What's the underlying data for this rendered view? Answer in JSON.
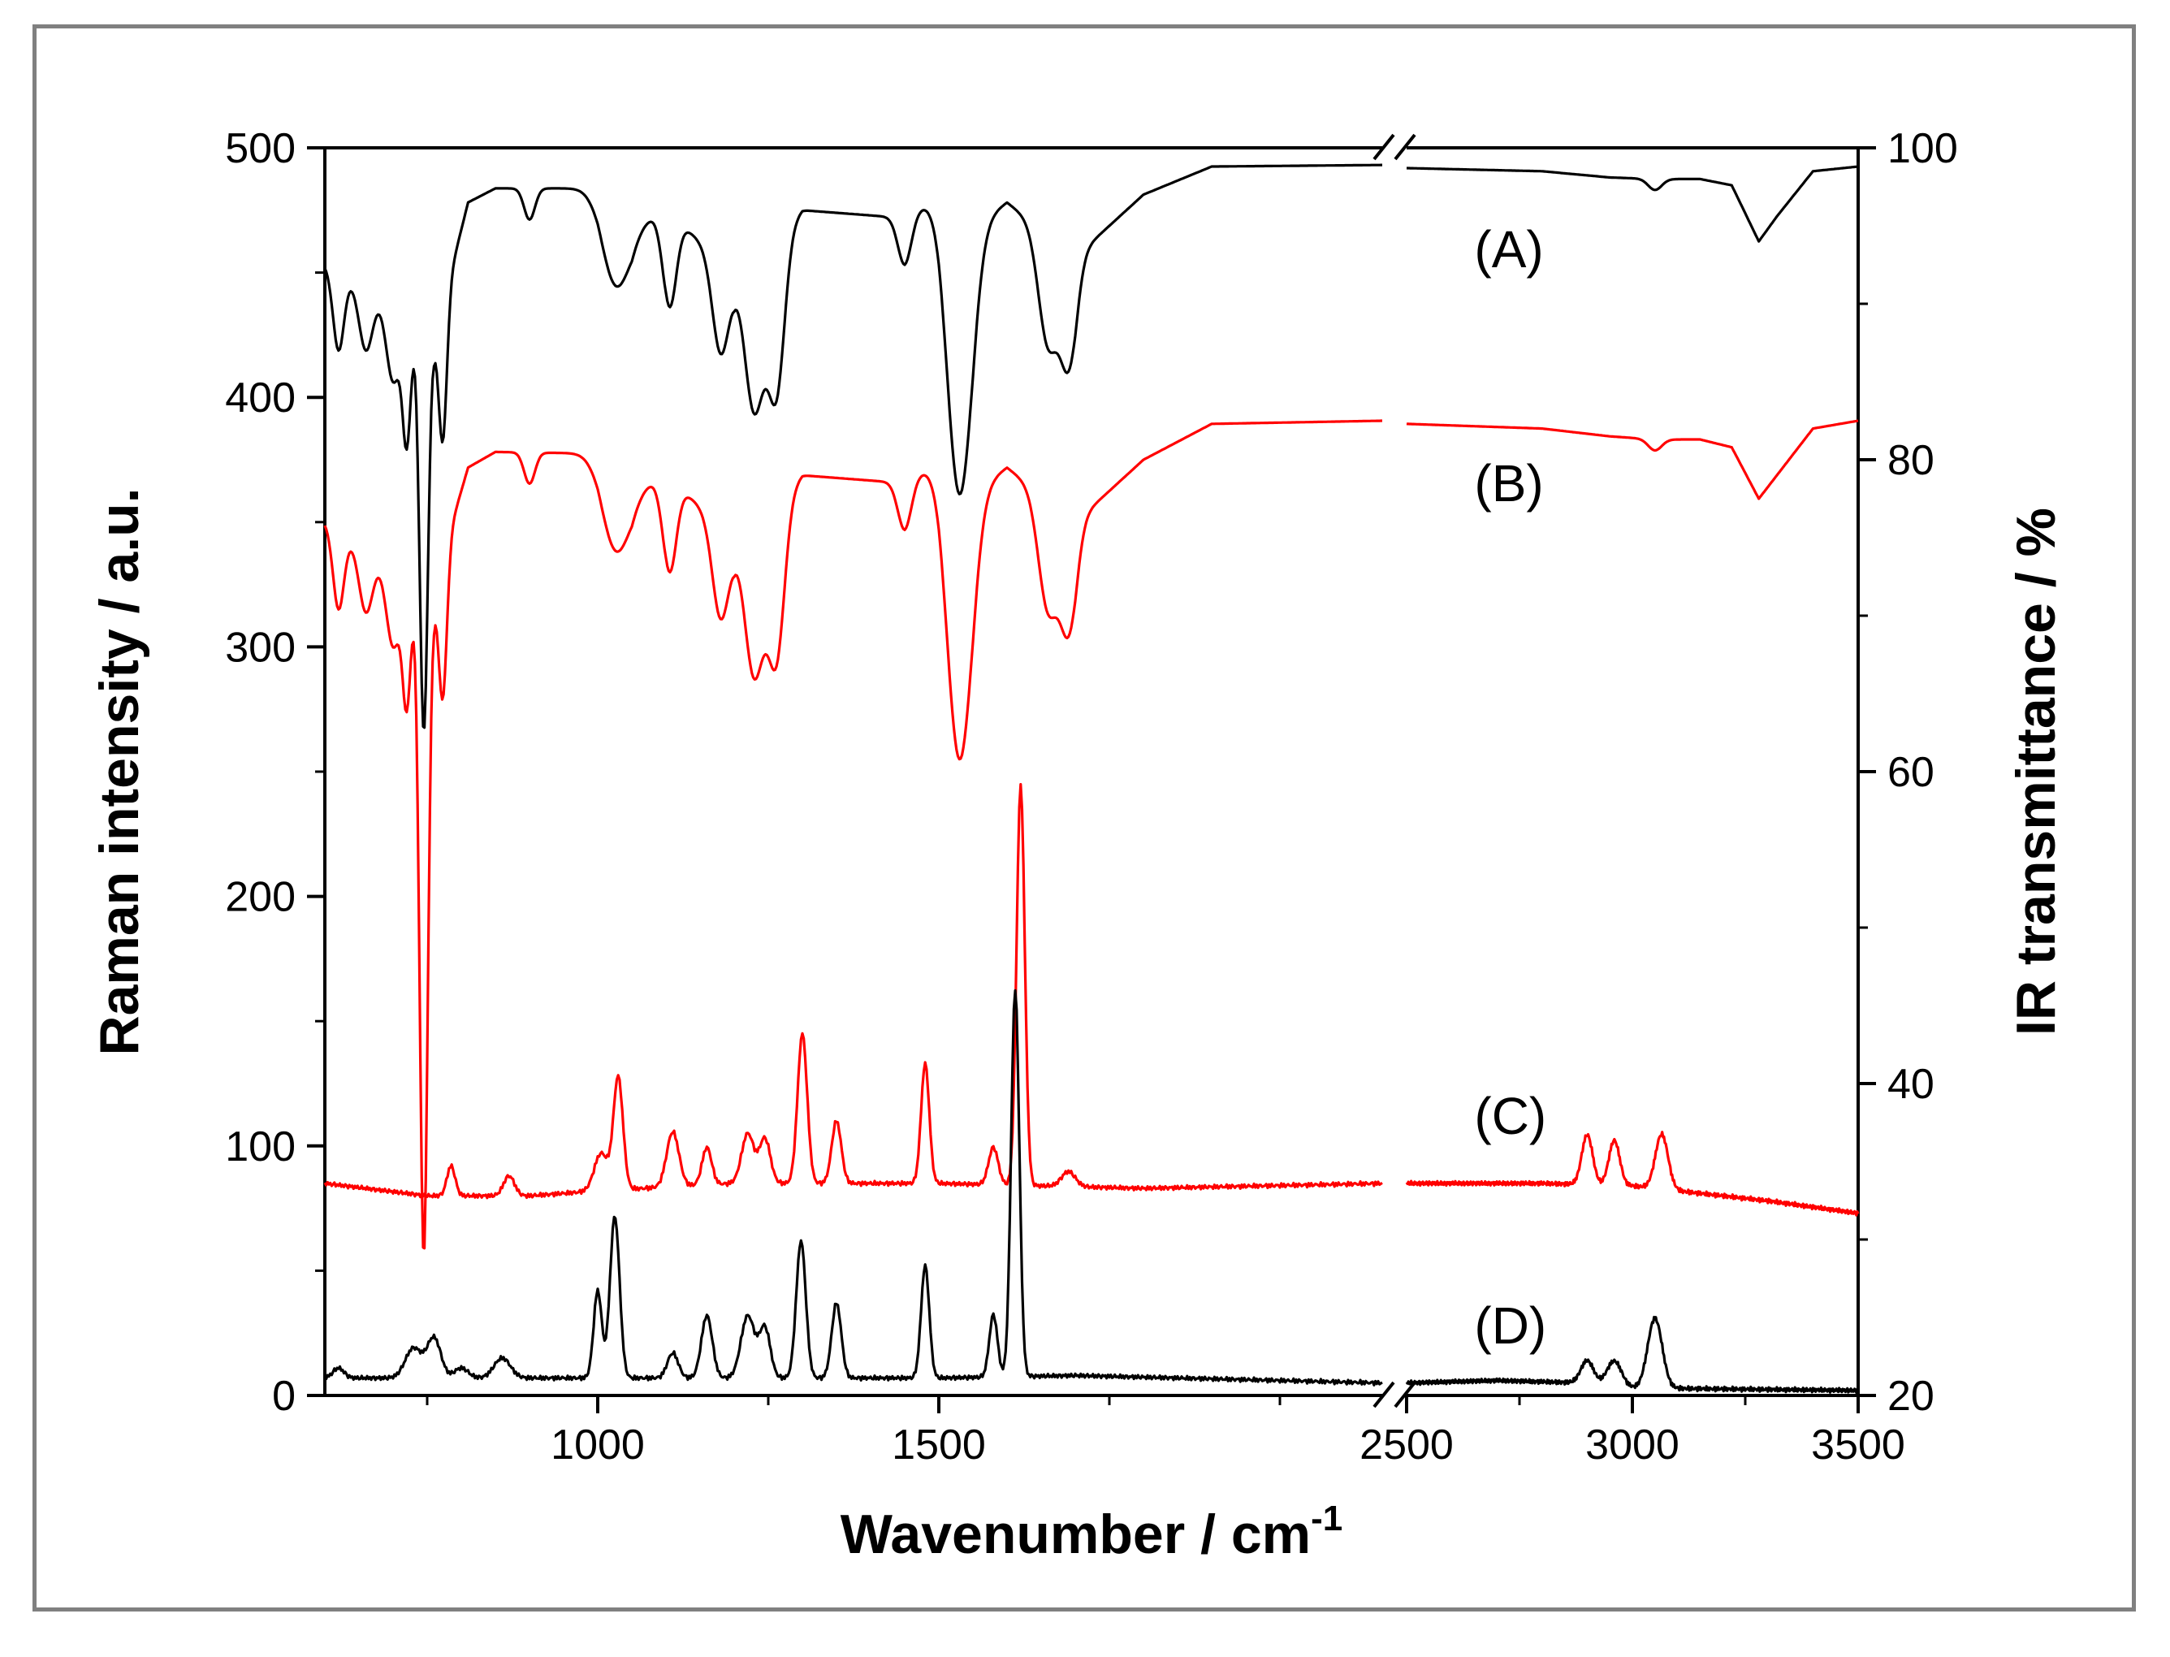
{
  "chart_data": {
    "type": "line",
    "title": "",
    "xlabel": "Wavenumber / cm",
    "xlabel_sup": "-1",
    "ylabel_left": "Raman intensity / a.u.",
    "ylabel_right": "IR transmittance / %",
    "x_break": true,
    "x_segments": [
      {
        "xlim": [
          600,
          2150
        ],
        "ticks": [
          1000,
          1500
        ],
        "tick_labels": [
          "1000",
          "1500"
        ]
      },
      {
        "xlim": [
          2500,
          3500
        ],
        "ticks": [
          2500,
          3000,
          3500
        ],
        "tick_labels": [
          "2500",
          "3000",
          "3500"
        ]
      }
    ],
    "ylim_left": [
      0,
      500
    ],
    "yticks_left": [
      0,
      100,
      200,
      300,
      400,
      500
    ],
    "ytick_labels_left": [
      "0",
      "100",
      "200",
      "300",
      "400",
      "500"
    ],
    "ylim_right": [
      20,
      100
    ],
    "yticks_right": [
      20,
      40,
      60,
      80,
      100
    ],
    "ytick_labels_right": [
      "20",
      "40",
      "60",
      "80",
      "100"
    ],
    "grid": false,
    "series": [
      {
        "name": "(A)",
        "axis": "right",
        "color": "#000000",
        "low": [
          [
            600,
            92.5
          ],
          [
            700,
            90
          ],
          [
            760,
            88
          ],
          [
            790,
            93
          ],
          [
            810,
            96.5
          ],
          [
            850,
            97.4
          ],
          [
            1000,
            97.4
          ],
          [
            1050,
            95
          ],
          [
            1100,
            96
          ],
          [
            1200,
            92
          ],
          [
            1300,
            96
          ],
          [
            1450,
            95.5
          ],
          [
            1500,
            97
          ],
          [
            1550,
            95
          ],
          [
            1600,
            96.5
          ],
          [
            1700,
            93
          ],
          [
            1800,
            97
          ],
          [
            1900,
            98.8
          ],
          [
            2150,
            98.9
          ]
        ],
        "high": [
          [
            2500,
            98.7
          ],
          [
            2800,
            98.5
          ],
          [
            2950,
            98.1
          ],
          [
            3050,
            98
          ],
          [
            3150,
            98
          ],
          [
            3220,
            97.6
          ],
          [
            3280,
            94
          ],
          [
            3320,
            95.6
          ],
          [
            3400,
            98.5
          ],
          [
            3500,
            98.8
          ]
        ],
        "dips": [
          [
            620,
            5,
            8
          ],
          [
            660,
            4,
            10
          ],
          [
            700,
            5,
            10
          ],
          [
            720,
            8,
            6
          ],
          [
            745,
            26,
            6
          ],
          [
            773,
            9,
            6
          ],
          [
            900,
            2,
            8
          ],
          [
            1025,
            5,
            20
          ],
          [
            1105,
            6,
            10
          ],
          [
            1180,
            6,
            12
          ],
          [
            1230,
            10,
            14
          ],
          [
            1262,
            10,
            12
          ],
          [
            1450,
            3,
            10
          ],
          [
            1530,
            18,
            18
          ],
          [
            1660,
            7,
            14
          ],
          [
            1690,
            7,
            12
          ],
          [
            3050,
            0.7,
            15
          ]
        ],
        "label": "(A)",
        "label_at": [
          2650,
          93.5
        ]
      },
      {
        "name": "(B)",
        "axis": "right",
        "color": "#ff0000",
        "low": [
          [
            600,
            76
          ],
          [
            700,
            73
          ],
          [
            760,
            71.5
          ],
          [
            790,
            76.5
          ],
          [
            810,
            79.5
          ],
          [
            850,
            80.5
          ],
          [
            1000,
            80.4
          ],
          [
            1050,
            78
          ],
          [
            1100,
            79
          ],
          [
            1200,
            75
          ],
          [
            1300,
            79
          ],
          [
            1450,
            78.5
          ],
          [
            1500,
            80
          ],
          [
            1550,
            78
          ],
          [
            1600,
            79.5
          ],
          [
            1700,
            76
          ],
          [
            1800,
            80
          ],
          [
            1900,
            82.3
          ],
          [
            2150,
            82.5
          ]
        ],
        "high": [
          [
            2500,
            82.3
          ],
          [
            2800,
            82
          ],
          [
            2950,
            81.5
          ],
          [
            3050,
            81.3
          ],
          [
            3150,
            81.3
          ],
          [
            3220,
            80.8
          ],
          [
            3280,
            77.5
          ],
          [
            3320,
            79
          ],
          [
            3400,
            82
          ],
          [
            3500,
            82.5
          ]
        ],
        "dips": [
          [
            620,
            5,
            8
          ],
          [
            660,
            4,
            10
          ],
          [
            700,
            5,
            10
          ],
          [
            720,
            8,
            6
          ],
          [
            745,
            43,
            6
          ],
          [
            773,
            9,
            6
          ],
          [
            900,
            2,
            8
          ],
          [
            1025,
            5,
            20
          ],
          [
            1105,
            6,
            10
          ],
          [
            1180,
            6,
            12
          ],
          [
            1230,
            10,
            14
          ],
          [
            1262,
            10,
            12
          ],
          [
            1450,
            3,
            10
          ],
          [
            1530,
            18,
            18
          ],
          [
            1660,
            7,
            14
          ],
          [
            1690,
            7,
            12
          ],
          [
            3050,
            0.7,
            15
          ]
        ],
        "label": "(B)",
        "label_at": [
          2650,
          78.5
        ]
      },
      {
        "name": "(C)",
        "axis": "left",
        "color": "#ff0000",
        "low": [
          [
            600,
            85
          ],
          [
            750,
            80
          ],
          [
            900,
            80
          ],
          [
            1000,
            82
          ],
          [
            1200,
            85
          ],
          [
            1500,
            85
          ],
          [
            1800,
            83
          ],
          [
            2150,
            85
          ]
        ],
        "high": [
          [
            2500,
            85
          ],
          [
            2800,
            85
          ],
          [
            3000,
            84
          ],
          [
            3300,
            78
          ],
          [
            3500,
            73
          ]
        ],
        "peaks": [
          [
            785,
            12,
            6
          ],
          [
            870,
            8,
            8
          ],
          [
            1005,
            15,
            10
          ],
          [
            1030,
            45,
            7
          ],
          [
            1110,
            22,
            9
          ],
          [
            1160,
            15,
            7
          ],
          [
            1220,
            20,
            9
          ],
          [
            1245,
            18,
            8
          ],
          [
            1300,
            60,
            7
          ],
          [
            1350,
            25,
            7
          ],
          [
            1480,
            48,
            6
          ],
          [
            1580,
            15,
            7
          ],
          [
            1620,
            160,
            6
          ],
          [
            1690,
            6,
            10
          ],
          [
            2900,
            20,
            12
          ],
          [
            2960,
            18,
            12
          ],
          [
            3065,
            22,
            14
          ]
        ],
        "label": "(C)",
        "label_at": [
          2650,
          112
        ]
      },
      {
        "name": "(D)",
        "axis": "left",
        "color": "#000000",
        "low": [
          [
            600,
            7
          ],
          [
            1000,
            7
          ],
          [
            1200,
            7
          ],
          [
            1500,
            7
          ],
          [
            1700,
            8
          ],
          [
            2000,
            6
          ],
          [
            2150,
            5
          ]
        ],
        "high": [
          [
            2500,
            5
          ],
          [
            2700,
            6
          ],
          [
            2900,
            5
          ],
          [
            3000,
            3
          ],
          [
            3500,
            2
          ]
        ],
        "peaks": [
          [
            620,
            4,
            8
          ],
          [
            730,
            12,
            12
          ],
          [
            760,
            16,
            10
          ],
          [
            800,
            4,
            10
          ],
          [
            860,
            8,
            12
          ],
          [
            1000,
            35,
            6
          ],
          [
            1025,
            65,
            7
          ],
          [
            1110,
            10,
            8
          ],
          [
            1160,
            25,
            8
          ],
          [
            1220,
            25,
            10
          ],
          [
            1245,
            20,
            8
          ],
          [
            1298,
            55,
            7
          ],
          [
            1350,
            30,
            7
          ],
          [
            1480,
            45,
            6
          ],
          [
            1580,
            25,
            6
          ],
          [
            1612,
            155,
            6
          ],
          [
            2900,
            9,
            14
          ],
          [
            2960,
            10,
            16
          ],
          [
            3050,
            28,
            16
          ]
        ],
        "label": "(D)",
        "label_at": [
          2650,
          28
        ]
      }
    ]
  }
}
